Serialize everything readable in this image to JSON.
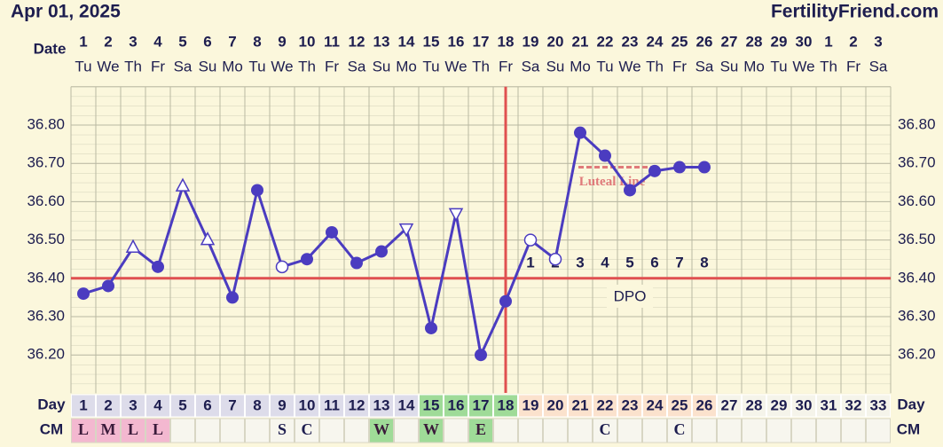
{
  "chart_data": {
    "type": "line",
    "title": "Apr 01, 2025",
    "site": "FertilityFriend.com",
    "date_label": "Date",
    "day_label": "Day",
    "cm_label": "CM",
    "dates": [
      1,
      2,
      3,
      4,
      5,
      6,
      7,
      8,
      9,
      10,
      11,
      12,
      13,
      14,
      15,
      16,
      17,
      18,
      19,
      20,
      21,
      22,
      23,
      24,
      25,
      26,
      27,
      28,
      29,
      30,
      1,
      2,
      3
    ],
    "weekdays": [
      "Tu",
      "We",
      "Th",
      "Fr",
      "Sa",
      "Su",
      "Mo",
      "Tu",
      "We",
      "Th",
      "Fr",
      "Sa",
      "Su",
      "Mo",
      "Tu",
      "We",
      "Th",
      "Fr",
      "Sa",
      "Su",
      "Mo",
      "Tu",
      "We",
      "Th",
      "Fr",
      "Sa",
      "Su",
      "Mo",
      "Tu",
      "We",
      "Th",
      "Fr",
      "Sa"
    ],
    "categories": [
      1,
      2,
      3,
      4,
      5,
      6,
      7,
      8,
      9,
      10,
      11,
      12,
      13,
      14,
      15,
      16,
      17,
      18,
      19,
      20,
      21,
      22,
      23,
      24,
      25,
      26,
      27,
      28,
      29,
      30,
      31,
      32,
      33
    ],
    "day_colors": [
      "#dddcea",
      "#dddcea",
      "#dddcea",
      "#dddcea",
      "#dddcea",
      "#dddcea",
      "#dddcea",
      "#dddcea",
      "#dddcea",
      "#dddcea",
      "#dddcea",
      "#dddcea",
      "#dddcea",
      "#dddcea",
      "#9fdb98",
      "#9fdb98",
      "#9fdb98",
      "#9fdb98",
      "#fbe2cd",
      "#fbe2cd",
      "#fbe2cd",
      "#fbe2cd",
      "#fbe2cd",
      "#fbe2cd",
      "#fbe2cd",
      "#fbe2cd",
      "#f5f4ea",
      "#f5f4ea",
      "#f5f4ea",
      "#f5f4ea",
      "#f5f4ea",
      "#f5f4ea",
      "#f5f4ea"
    ],
    "cm": [
      "L",
      "M",
      "L",
      "L",
      null,
      null,
      null,
      null,
      "S",
      "C",
      null,
      null,
      "W",
      null,
      "W",
      null,
      "E",
      null,
      null,
      null,
      null,
      "C",
      null,
      null,
      "C",
      null,
      null,
      null,
      null,
      null,
      null,
      null,
      null
    ],
    "cm_colors": [
      "#f3b8d0",
      "#f3b8d0",
      "#f3b8d0",
      "#f3b8d0",
      null,
      null,
      null,
      null,
      null,
      null,
      null,
      null,
      "#9fdb98",
      null,
      "#9fdb98",
      null,
      "#9fdb98",
      null,
      null,
      null,
      null,
      null,
      null,
      null,
      null,
      null,
      null,
      null,
      null,
      null,
      null,
      null,
      null
    ],
    "series": [
      {
        "name": "Temperature",
        "color": "#4b3cc0",
        "values": [
          36.36,
          36.38,
          36.48,
          36.43,
          36.64,
          36.5,
          36.35,
          36.63,
          36.43,
          36.45,
          36.52,
          36.44,
          36.47,
          36.53,
          36.27,
          36.57,
          36.2,
          36.34,
          36.5,
          36.45,
          36.78,
          36.72,
          36.63,
          36.68,
          36.69,
          36.69,
          null,
          null,
          null,
          null,
          null,
          null,
          null
        ],
        "markers": [
          "circle",
          "circle",
          "triangle",
          "circle",
          "triangle",
          "triangle",
          "circle",
          "circle",
          "open-circle",
          "circle",
          "circle",
          "circle",
          "circle",
          "inverted-triangle",
          "circle",
          "inverted-triangle",
          "circle",
          "circle",
          "open-circle",
          "open-circle",
          "circle",
          "circle",
          "circle",
          "circle",
          "circle",
          "circle",
          null,
          null,
          null,
          null,
          null,
          null,
          null
        ]
      }
    ],
    "ylim": [
      36.1,
      36.9
    ],
    "yticks": [
      {
        "value": 36.2,
        "label": "36.20"
      },
      {
        "value": 36.3,
        "label": "36.30"
      },
      {
        "value": 36.4,
        "label": "36.40"
      },
      {
        "value": 36.5,
        "label": "36.50"
      },
      {
        "value": 36.6,
        "label": "36.60"
      },
      {
        "value": 36.7,
        "label": "36.70"
      },
      {
        "value": 36.8,
        "label": "36.80"
      }
    ],
    "coverline": 36.4,
    "coverline_color": "#e05050",
    "ovulation_day": 18,
    "dpo_label": "DPO",
    "dpo_numbers": [
      1,
      2,
      3,
      4,
      5,
      6,
      7,
      8
    ],
    "luteal_line": {
      "label": "Luteal Line",
      "value": 36.69,
      "color": "#e07a7a"
    }
  }
}
